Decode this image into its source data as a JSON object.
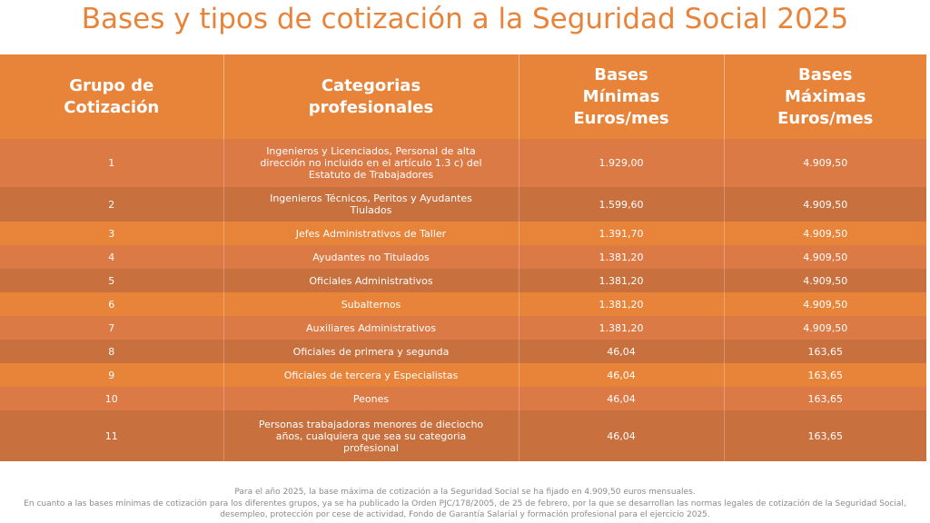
{
  "header": {
    "title": "Bases y tipos de cotización a la Seguridad Social 2025"
  },
  "table": {
    "columns": [
      "Grupo de Cotización",
      "Categorias profesionales",
      "Bases Mínimas Euros/mes",
      "Bases Máximas Euros/mes"
    ],
    "rows": [
      [
        "1",
        "Ingenieros y Licenciados, Personal de alta dirección no incluido en el artículo 1.3 c) del Estatuto de Trabajadores",
        "1.929,00",
        "4.909,50"
      ],
      [
        "2",
        "Ingenieros Técnicos, Peritos y Ayudantes Tiulados",
        "1.599,60",
        "4.909,50"
      ],
      [
        "3",
        "Jefes Administrativos de Taller",
        "1.391,70",
        "4.909,50"
      ],
      [
        "4",
        "Ayudantes no Titulados",
        "1.381,20",
        "4.909,50"
      ],
      [
        "5",
        "Oficiales Administrativos",
        "1.381,20",
        "4.909,50"
      ],
      [
        "6",
        "Subalternos",
        "1.381,20",
        "4.909,50"
      ],
      [
        "7",
        "Auxiliares Administrativos",
        "1.381,20",
        "4.909,50"
      ],
      [
        "8",
        "Oficiales de primera y segunda",
        "46,04",
        "163,65"
      ],
      [
        "9",
        "Oficiales de tercera y Especialistas",
        "46,04",
        "163,65"
      ],
      [
        "10",
        "Peones",
        "46,04",
        "163,65"
      ],
      [
        "11",
        "Personas trabajadoras menores de dieciocho años, cualquiera que sea su categoria profesional",
        "46,04",
        "163,65"
      ]
    ]
  },
  "footer": {
    "notes": [
      "Para el año 2025, la base máxima de cotización a la Seguridad Social se ha fijado en 4.909,50 euros mensuales.",
      "En cuanto a las bases mínimas de cotización para los diferentes grupos, ya se ha publicado la Orden PJC/178/2005, de 25 de febrero, por la que se desarrollan las normas legales de cotización de la Seguridad Social, desempleo, protección por cese de actividad, Fondo de Garantía Salarial y formación profesional para el ejercicio 2025."
    ]
  }
}
